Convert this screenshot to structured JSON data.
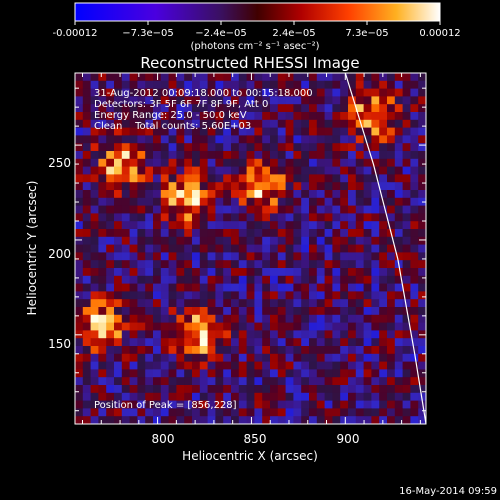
{
  "colorbar": {
    "tick_labels": [
      "-0.00012",
      "−7.3e−05",
      "−2.4e−05",
      "2.4e−05",
      "7.3e−05",
      "0.00012"
    ],
    "units": "(photons cm⁻² s⁻¹ asec⁻²)",
    "colors": [
      "#0000ff",
      "#4000ff",
      "#5a00cc",
      "#3a1a60",
      "#5a0000",
      "#a00000",
      "#e02000",
      "#ff7000",
      "#ffc040",
      "#ffffff"
    ]
  },
  "plot": {
    "title": "Reconstructed RHESSI Image",
    "info_lines": [
      "31-Aug-2012 00:09:18.000 to 00:15:18.000",
      "Detectors: 3F 5F 6F 7F 8F 9F, Att 0",
      "Energy Range: 25.0 - 50.0 keV",
      "Clean    Total counts: 5.60E+03"
    ],
    "peak_label": "Position of Peak = [856,228]"
  },
  "chart_data": {
    "type": "heatmap",
    "title": "Reconstructed RHESSI Image",
    "xlabel": "Heliocentric X (arcsec)",
    "ylabel": "Heliocentric Y (arcsec)",
    "xlim": [
      756,
      943
    ],
    "ylim": [
      103,
      288
    ],
    "x_ticks": [
      800,
      850,
      900
    ],
    "y_ticks": [
      150,
      200,
      250
    ],
    "peak": [
      856,
      228
    ],
    "colorbar_range": [
      -0.00012,
      0.00012
    ],
    "bright_sources": [
      {
        "x": 815,
        "y": 222
      },
      {
        "x": 856,
        "y": 228
      },
      {
        "x": 780,
        "y": 240
      },
      {
        "x": 770,
        "y": 155
      },
      {
        "x": 822,
        "y": 150
      },
      {
        "x": 915,
        "y": 265
      }
    ],
    "limb_curve": [
      [
        900,
        288
      ],
      [
        915,
        240
      ],
      [
        928,
        190
      ],
      [
        937,
        140
      ],
      [
        943,
        103
      ]
    ]
  },
  "footer": {
    "timestamp": "16-May-2014 09:59"
  }
}
